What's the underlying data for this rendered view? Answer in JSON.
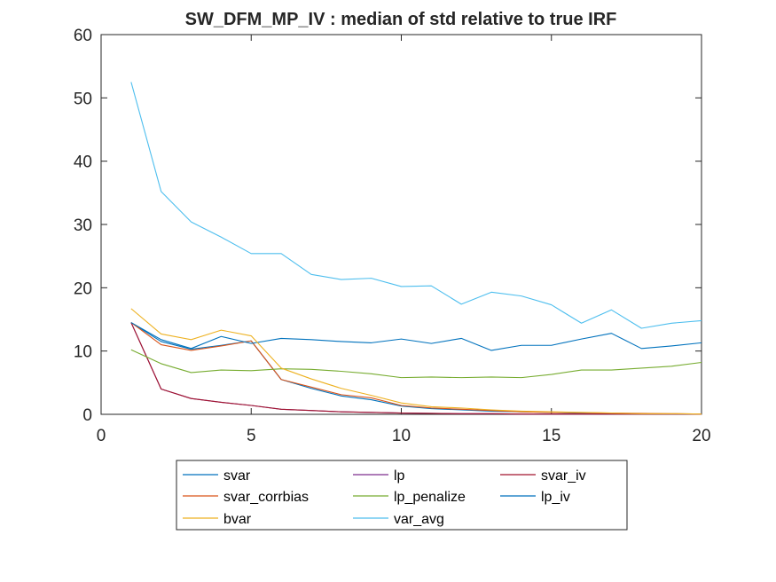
{
  "chart_data": {
    "type": "line",
    "title": "SW_DFM_MP_IV : median of std relative to true IRF",
    "xlabel": "",
    "ylabel": "",
    "xlim": [
      0,
      20
    ],
    "ylim": [
      0,
      60
    ],
    "xticks": [
      0,
      5,
      10,
      15,
      20
    ],
    "yticks": [
      0,
      10,
      20,
      30,
      40,
      50,
      60
    ],
    "grid": false,
    "legend_placement": "bottom-outside",
    "x": [
      1,
      2,
      3,
      4,
      5,
      6,
      7,
      8,
      9,
      10,
      11,
      12,
      13,
      14,
      15,
      16,
      17,
      18,
      19,
      20
    ],
    "series": [
      {
        "name": "svar",
        "color": "#0072BD",
        "values": [
          14.5,
          11.5,
          10.3,
          10.9,
          11.6,
          5.5,
          4.1,
          2.9,
          2.3,
          1.3,
          0.9,
          0.7,
          0.5,
          0.4,
          0.3,
          0.2,
          0.15,
          0.1,
          0.05,
          0.05
        ]
      },
      {
        "name": "lp",
        "color": "#7E2F8E",
        "values": [
          14.5,
          4.0,
          2.5,
          1.9,
          1.4,
          0.8,
          0.6,
          0.4,
          0.3,
          0.2,
          0.15,
          0.1,
          0.1,
          0.05,
          0.05,
          0.05,
          0.05,
          0.05,
          0.05,
          0.05
        ]
      },
      {
        "name": "svar_iv",
        "color": "#A2142F",
        "values": [
          14.5,
          4.0,
          2.5,
          1.9,
          1.4,
          0.8,
          0.6,
          0.4,
          0.3,
          0.2,
          0.15,
          0.1,
          0.1,
          0.05,
          0.05,
          0.05,
          0.05,
          0.05,
          0.05,
          0.05
        ]
      },
      {
        "name": "svar_corrbias",
        "color": "#D95319",
        "values": [
          14.5,
          11.0,
          10.1,
          10.8,
          11.6,
          5.5,
          4.3,
          3.1,
          2.6,
          1.4,
          1.0,
          0.8,
          0.6,
          0.4,
          0.3,
          0.25,
          0.2,
          0.15,
          0.1,
          0.05
        ]
      },
      {
        "name": "lp_penalize",
        "color": "#77AC30",
        "values": [
          10.2,
          8.0,
          6.6,
          7.0,
          6.9,
          7.2,
          7.1,
          6.8,
          6.4,
          5.8,
          5.9,
          5.8,
          5.9,
          5.8,
          6.3,
          7.0,
          7.0,
          7.3,
          7.6,
          8.2
        ]
      },
      {
        "name": "lp_iv",
        "color": "#0072BD",
        "values": [
          14.5,
          11.8,
          10.4,
          12.3,
          11.2,
          12.0,
          11.8,
          11.5,
          11.3,
          11.9,
          11.2,
          12.0,
          10.1,
          10.9,
          10.9,
          11.9,
          12.8,
          10.4,
          10.8,
          11.3
        ]
      },
      {
        "name": "bvar",
        "color": "#EDB120",
        "values": [
          16.7,
          12.7,
          11.8,
          13.3,
          12.4,
          7.3,
          5.6,
          4.1,
          3.0,
          1.8,
          1.2,
          1.0,
          0.7,
          0.5,
          0.4,
          0.3,
          0.2,
          0.1,
          0.1,
          0.05
        ]
      },
      {
        "name": "var_avg",
        "color": "#4DBEEE",
        "values": [
          52.5,
          35.2,
          30.4,
          28.0,
          25.4,
          25.4,
          22.1,
          21.3,
          21.5,
          20.2,
          20.3,
          17.4,
          19.3,
          18.7,
          17.3,
          14.4,
          16.5,
          13.6,
          14.4,
          14.8
        ]
      }
    ]
  }
}
